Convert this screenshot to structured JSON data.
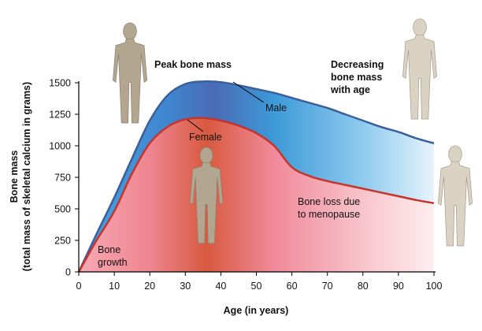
{
  "chart_data": {
    "type": "area",
    "x": [
      0,
      5,
      10,
      15,
      20,
      25,
      30,
      35,
      40,
      45,
      50,
      55,
      60,
      65,
      70,
      75,
      80,
      85,
      90,
      95,
      100
    ],
    "series": [
      {
        "name": "Male",
        "color": "#3a5f9e",
        "values": [
          0,
          300,
          590,
          900,
          1200,
          1400,
          1490,
          1510,
          1505,
          1480,
          1450,
          1420,
          1380,
          1340,
          1300,
          1250,
          1200,
          1150,
          1110,
          1060,
          1020
        ]
      },
      {
        "name": "Female",
        "color": "#c6342c",
        "values": [
          0,
          250,
          480,
          780,
          1020,
          1150,
          1210,
          1220,
          1200,
          1160,
          1100,
          1000,
          830,
          760,
          720,
          690,
          660,
          630,
          600,
          570,
          545
        ]
      }
    ],
    "xlim": [
      0,
      100
    ],
    "xticks": [
      0,
      10,
      20,
      30,
      40,
      50,
      60,
      70,
      80,
      90,
      100
    ],
    "ylim": [
      0,
      1500
    ],
    "yticks": [
      0,
      250,
      500,
      750,
      1000,
      1250,
      1500
    ],
    "x_label": "Age (in years)",
    "y_label": [
      "Bone mass",
      "(total mass of skeletal calcium in grams)"
    ],
    "annotations": [
      {
        "lines": [
          "Peak bone mass"
        ]
      },
      {
        "lines": [
          "Decreasing",
          "bone mass",
          "with age"
        ]
      },
      {
        "lines": [
          "Bone loss due",
          "to menopause"
        ]
      },
      {
        "lines": [
          "Bone",
          "growth"
        ]
      }
    ]
  }
}
